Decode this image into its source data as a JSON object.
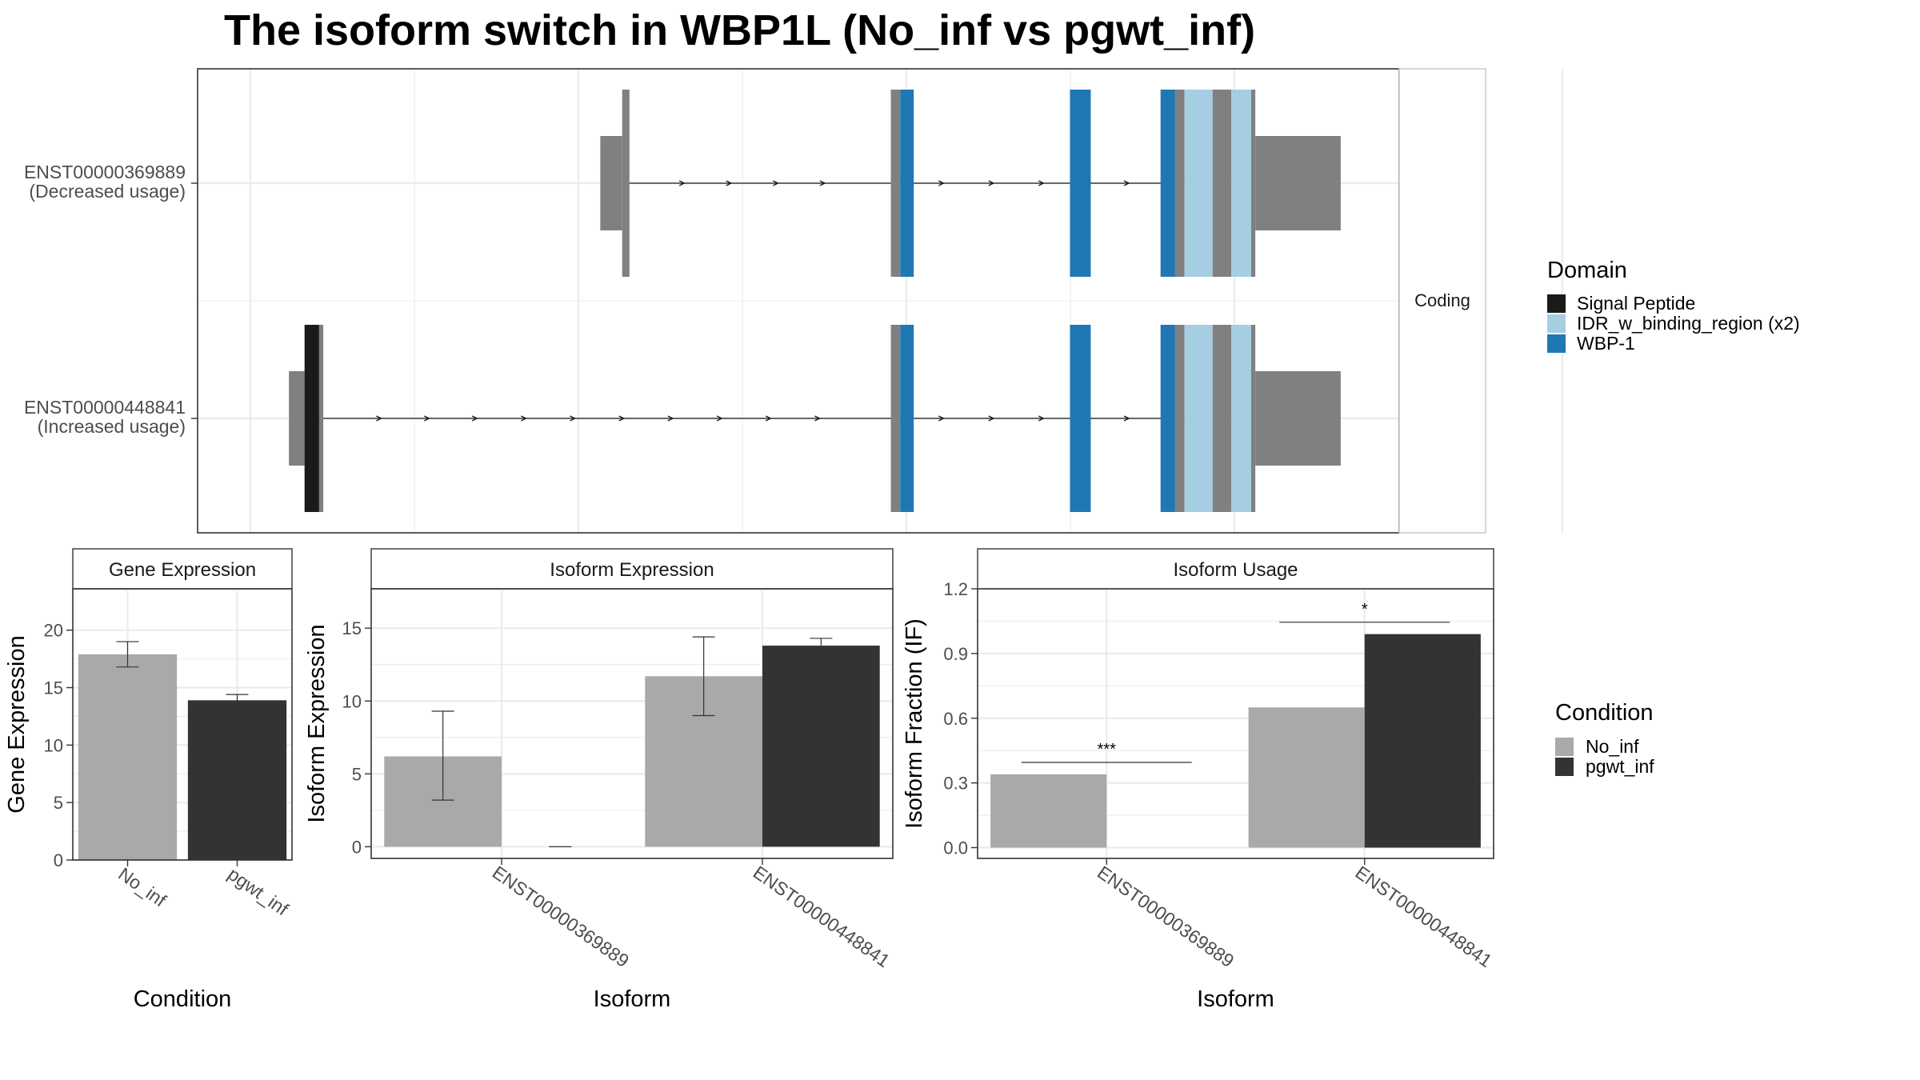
{
  "figure": {
    "title": "The isoform switch in WBP1L (No_inf vs pgwt_inf)"
  },
  "colors": {
    "signal_peptide": "#1a1a1a",
    "idr": "#a6cee3",
    "wbp1": "#1f78b4",
    "exon": "#808080",
    "no_inf": "#a9a9a9",
    "pgwt_inf": "#333333",
    "grid": "#ebebeb",
    "panel_border": "#333333",
    "strip_border": "#c8c8c8"
  },
  "chart_data": [
    {
      "id": "transcripts",
      "type": "gene-structure",
      "strip_label": "Coding",
      "x_range": [
        0,
        1000
      ],
      "transcripts": [
        {
          "name": "ENST00000369889",
          "sublabel": "(Decreased usage)",
          "line": [
            351,
            907
          ],
          "exons": [
            {
              "start": 336,
              "end": 357,
              "kind": "utr"
            },
            {
              "start": 357,
              "end": 364,
              "kind": "cds"
            },
            {
              "start": 615,
              "end": 624,
              "kind": "cds"
            },
            {
              "start": 624,
              "end": 637,
              "kind": "domain",
              "domain": "WBP-1"
            },
            {
              "start": 787,
              "end": 807,
              "kind": "domain",
              "domain": "WBP-1"
            },
            {
              "start": 874,
              "end": 888,
              "kind": "domain",
              "domain": "WBP-1"
            },
            {
              "start": 888,
              "end": 897,
              "kind": "cds"
            },
            {
              "start": 897,
              "end": 924,
              "kind": "domain",
              "domain": "IDR_w_binding_region (x2)"
            },
            {
              "start": 924,
              "end": 942,
              "kind": "cds"
            },
            {
              "start": 942,
              "end": 961,
              "kind": "domain",
              "domain": "IDR_w_binding_region (x2)"
            },
            {
              "start": 961,
              "end": 965,
              "kind": "cds"
            },
            {
              "start": 965,
              "end": 1047,
              "kind": "utr"
            }
          ],
          "arrows": [
            415,
            460,
            505,
            550,
            664,
            712,
            760,
            842
          ]
        },
        {
          "name": "ENST00000448841",
          "sublabel": "(Increased usage)",
          "line": [
            52,
            907
          ],
          "exons": [
            {
              "start": 37,
              "end": 52,
              "kind": "utr"
            },
            {
              "start": 52,
              "end": 66,
              "kind": "domain",
              "domain": "Signal Peptide"
            },
            {
              "start": 66,
              "end": 70,
              "kind": "cds"
            },
            {
              "start": 615,
              "end": 624,
              "kind": "cds"
            },
            {
              "start": 624,
              "end": 637,
              "kind": "domain",
              "domain": "WBP-1"
            },
            {
              "start": 787,
              "end": 807,
              "kind": "domain",
              "domain": "WBP-1"
            },
            {
              "start": 874,
              "end": 888,
              "kind": "domain",
              "domain": "WBP-1"
            },
            {
              "start": 888,
              "end": 897,
              "kind": "cds"
            },
            {
              "start": 897,
              "end": 924,
              "kind": "domain",
              "domain": "IDR_w_binding_region (x2)"
            },
            {
              "start": 924,
              "end": 942,
              "kind": "cds"
            },
            {
              "start": 942,
              "end": 961,
              "kind": "domain",
              "domain": "IDR_w_binding_region (x2)"
            },
            {
              "start": 961,
              "end": 965,
              "kind": "cds"
            },
            {
              "start": 965,
              "end": 1047,
              "kind": "utr"
            }
          ],
          "arrows": [
            124,
            170,
            216,
            263,
            310,
            357,
            404,
            451,
            498,
            545,
            664,
            712,
            760,
            842
          ]
        }
      ],
      "legend": {
        "title": "Domain",
        "entries": [
          {
            "label": "Signal Peptide",
            "color": "#1a1a1a"
          },
          {
            "label": "IDR_w_binding_region (x2)",
            "color": "#a6cee3"
          },
          {
            "label": "WBP-1",
            "color": "#1f78b4"
          }
        ]
      }
    },
    {
      "id": "gene_expression",
      "type": "bar",
      "strip_label": "Gene Expression",
      "categories": [
        "No_inf",
        "pgwt_inf"
      ],
      "values": [
        17.9,
        13.9
      ],
      "errors": [
        [
          16.8,
          19.0
        ],
        [
          13.4,
          14.4
        ]
      ],
      "colors": [
        "#a9a9a9",
        "#333333"
      ],
      "ylim": [
        0,
        23.6
      ],
      "yticks": [
        0,
        5,
        10,
        15,
        20
      ],
      "xlabel": "Condition",
      "ylabel": "Gene Expression"
    },
    {
      "id": "isoform_expression",
      "type": "bar",
      "strip_label": "Isoform Expression",
      "categories": [
        "ENST00000369889",
        "ENST00000448841"
      ],
      "series": [
        {
          "name": "No_inf",
          "values": [
            6.2,
            11.7
          ],
          "errors": [
            [
              3.2,
              9.3
            ],
            [
              9.0,
              14.4
            ]
          ]
        },
        {
          "name": "pgwt_inf",
          "values": [
            0,
            13.8
          ],
          "errors": [
            [
              0,
              0
            ],
            [
              13.3,
              14.3
            ]
          ]
        }
      ],
      "ylim": [
        -0.8,
        17.7
      ],
      "yticks": [
        0,
        5,
        10,
        15
      ],
      "xlabel": "Isoform",
      "ylabel": "Isoform Expression"
    },
    {
      "id": "isoform_usage",
      "type": "bar",
      "strip_label": "Isoform Usage",
      "categories": [
        "ENST00000369889",
        "ENST00000448841"
      ],
      "series": [
        {
          "name": "No_inf",
          "values": [
            0.34,
            0.65
          ]
        },
        {
          "name": "pgwt_inf",
          "values": [
            0.0,
            0.99
          ]
        }
      ],
      "significance": [
        {
          "category_index": 0,
          "label": "***",
          "y": 0.395
        },
        {
          "category_index": 1,
          "label": "*",
          "y": 1.045
        }
      ],
      "ylim": [
        -0.05,
        1.2
      ],
      "yticks": [
        0.0,
        0.3,
        0.6,
        0.9,
        1.2
      ],
      "ytick_labels": [
        "0.0",
        "0.3",
        "0.6",
        "0.9",
        "1.2"
      ],
      "xlabel": "Isoform",
      "ylabel": "Isoform Fraction (IF)",
      "legend": {
        "title": "Condition",
        "entries": [
          {
            "label": "No_inf",
            "color": "#a9a9a9"
          },
          {
            "label": "pgwt_inf",
            "color": "#333333"
          }
        ]
      }
    }
  ]
}
